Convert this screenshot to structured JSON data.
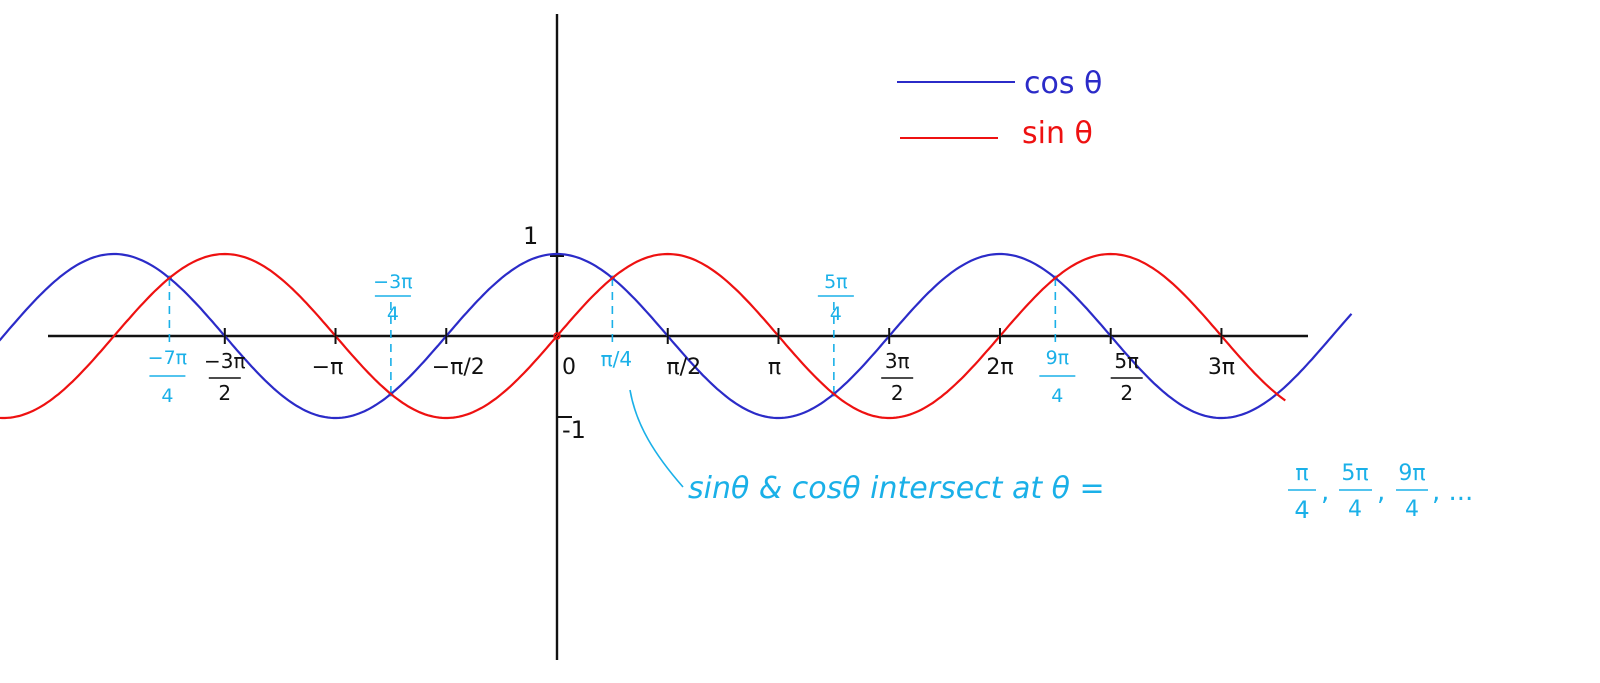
{
  "chart_data": {
    "type": "line",
    "title": "",
    "xlabel": "",
    "ylabel": "",
    "xlim": [
      -10.75,
      11.95
    ],
    "ylim": [
      -3.8,
      4.0
    ],
    "grid": false,
    "legend_position": "top-right",
    "legend": [
      {
        "label": "cos θ",
        "color": "#2b2bc8"
      },
      {
        "label": "sin θ",
        "color": "#ee1111"
      }
    ],
    "series": [
      {
        "name": "cos θ",
        "function": "cos",
        "color": "#2b2bc8",
        "x_range": [
          -9.45,
          11.3
        ]
      },
      {
        "name": "sin θ",
        "function": "sin",
        "color": "#ee1111",
        "x_range": [
          -8.95,
          10.35
        ]
      }
    ],
    "y_ticks": [
      {
        "value": 1,
        "label": "1"
      },
      {
        "value": -1,
        "label": "-1"
      }
    ],
    "x_ticks": [
      {
        "value": -4.712,
        "label_top": "−3π",
        "label_bottom": "2"
      },
      {
        "value": -3.1416,
        "label": "−π"
      },
      {
        "value": -1.5708,
        "label": "−π/2"
      },
      {
        "value": 0,
        "label": "0"
      },
      {
        "value": 1.5708,
        "label": "π/2"
      },
      {
        "value": 3.1416,
        "label": "π"
      },
      {
        "value": 4.712,
        "label_top": "3π",
        "label_bottom": "2"
      },
      {
        "value": 6.2832,
        "label": "2π"
      },
      {
        "value": 7.854,
        "label_top": "5π",
        "label_bottom": "2"
      },
      {
        "value": 9.4248,
        "label": "3π"
      }
    ],
    "intersections": [
      {
        "x": -5.4978,
        "y": 0.7071,
        "label_top": "−7π",
        "label_bottom": "4",
        "label_side": "below"
      },
      {
        "x": -2.3562,
        "y": -0.7071,
        "label_top": "−3π",
        "label_bottom": "4",
        "label_side": "above"
      },
      {
        "x": 0.7854,
        "y": 0.7071,
        "label": "π/4",
        "label_side": "below"
      },
      {
        "x": 3.927,
        "y": -0.7071,
        "label_top": "5π",
        "label_bottom": "4",
        "label_side": "above"
      },
      {
        "x": 7.0686,
        "y": 0.7071,
        "label_top": "9π",
        "label_bottom": "4",
        "label_side": "below"
      }
    ],
    "annotation": {
      "text": "sinθ & cosθ  intersect at  θ =",
      "fractions": [
        {
          "top": "π",
          "bottom": "4"
        },
        {
          "top": "5π",
          "bottom": "4"
        },
        {
          "top": "9π",
          "bottom": "4"
        }
      ],
      "suffix": ", ..."
    }
  },
  "colors": {
    "axis": "#111111",
    "cos": "#2b2bc8",
    "sin": "#ee1111",
    "annotation": "#1ab0e8"
  }
}
